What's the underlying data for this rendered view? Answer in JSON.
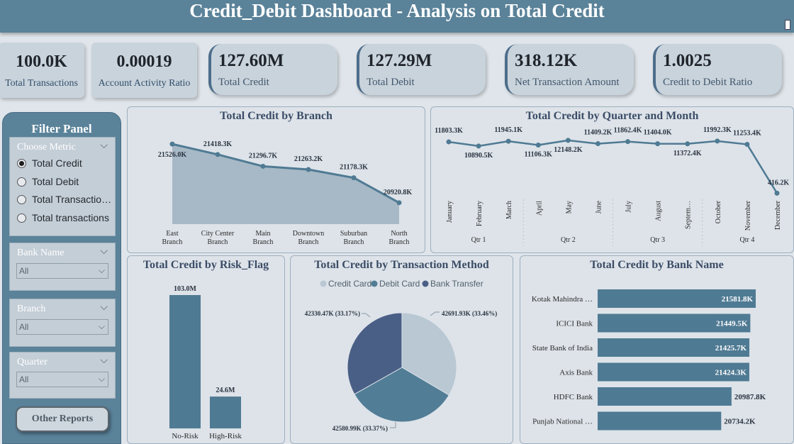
{
  "title": "Credit_Debit Dashboard - Analysis on Total Credit",
  "kpis_small": [
    {
      "value": "100.0K",
      "label": "Total Transactions"
    },
    {
      "value": "0.00019",
      "label": "Account Activity Ratio"
    }
  ],
  "kpis": [
    {
      "value": "127.60M",
      "label": "Total Credit"
    },
    {
      "value": "127.29M",
      "label": "Total Debit"
    },
    {
      "value": "318.12K",
      "label": "Net Transaction Amount"
    },
    {
      "value": "1.0025",
      "label": "Credit to Debit Ratio"
    }
  ],
  "filter_panel": {
    "title": "Filter Panel",
    "metric": {
      "heading": "Choose Metric",
      "options": [
        "Total Credit",
        "Total Debit",
        "Total Transaction…",
        "Total transactions"
      ],
      "selected": 0
    },
    "slicers": [
      {
        "heading": "Bank Name",
        "value": "All"
      },
      {
        "heading": "Branch",
        "value": "All"
      },
      {
        "heading": "Quarter",
        "value": "All"
      }
    ],
    "button": "Other Reports"
  },
  "icons": {
    "chevron": "chevron-down-icon",
    "radio": "radio-icon"
  },
  "colors": {
    "header": "#5a8299",
    "accent": "#4f7a93",
    "area_fill": "#9db1c0",
    "pie": [
      "#b9c8d3",
      "#527d96",
      "#4a5f86"
    ]
  },
  "chart_data": [
    {
      "type": "area",
      "title": "Total Credit by Branch",
      "categories": [
        "East Branch",
        "City Center Branch",
        "Main Branch",
        "Downtown Branch",
        "Suburban Branch",
        "North Branch"
      ],
      "category_lines": [
        [
          "East",
          "Branch"
        ],
        [
          "City Center",
          "Branch"
        ],
        [
          "Main",
          "Branch"
        ],
        [
          "Downtown",
          "Branch"
        ],
        [
          "Suburban",
          "Branch"
        ],
        [
          "North",
          "Branch"
        ]
      ],
      "values": [
        21526.0,
        21418.3,
        21296.7,
        21263.2,
        21178.3,
        20920.8
      ],
      "labels": [
        "21526.0K",
        "21418.3K",
        "21296.7K",
        "21263.2K",
        "21178.3K",
        "20920.8K"
      ],
      "unit": "K"
    },
    {
      "type": "line",
      "title": "Total Credit by Quarter and Month",
      "categories": [
        "January",
        "February",
        "March",
        "April",
        "May",
        "June",
        "July",
        "August",
        "Septem…",
        "October",
        "November",
        "December"
      ],
      "groups": [
        "Qtr 1",
        "Qtr 2",
        "Qtr 3",
        "Qtr 4"
      ],
      "values": [
        11803.3,
        10890.5,
        11945.1,
        11106.3,
        12148.2,
        11409.2,
        11862.4,
        11404.0,
        11372.4,
        11992.3,
        11253.4,
        416.2
      ],
      "labels": [
        "11803.3K",
        "10890.5K",
        "11945.1K",
        "11106.3K",
        "12148.2K",
        "11409.2K",
        "11862.4K",
        "11404.0K",
        "11372.4K",
        "11992.3K",
        "11253.4K",
        "416.2K"
      ],
      "unit": "K"
    },
    {
      "type": "bar",
      "title": "Total Credit by Risk_Flag",
      "categories": [
        "No-Risk",
        "High-Risk"
      ],
      "values": [
        103.0,
        24.6
      ],
      "labels": [
        "103.0M",
        "24.6M"
      ],
      "unit": "M"
    },
    {
      "type": "pie",
      "title": "Total Credit by Transaction Method",
      "categories": [
        "Credit Card",
        "Debit Card",
        "Bank Transfer"
      ],
      "values": [
        42691.93,
        42580.99,
        42330.47
      ],
      "labels": [
        "42691.93K (33.46%)",
        "42580.99K (33.37%)",
        "42330.47K (33.17%)"
      ],
      "legend": "top"
    },
    {
      "type": "bar",
      "orientation": "horizontal",
      "title": "Total Credit by Bank Name",
      "categories": [
        "Kotak Mahindra …",
        "ICICI Bank",
        "State Bank of India",
        "Axis Bank",
        "HDFC Bank",
        "Punjab National …"
      ],
      "values": [
        21581.8,
        21449.5,
        21425.7,
        21424.3,
        20987.8,
        20734.2
      ],
      "labels": [
        "21581.8K",
        "21449.5K",
        "21425.7K",
        "21424.3K",
        "20987.8K",
        "20734.2K"
      ],
      "unit": "K"
    }
  ]
}
